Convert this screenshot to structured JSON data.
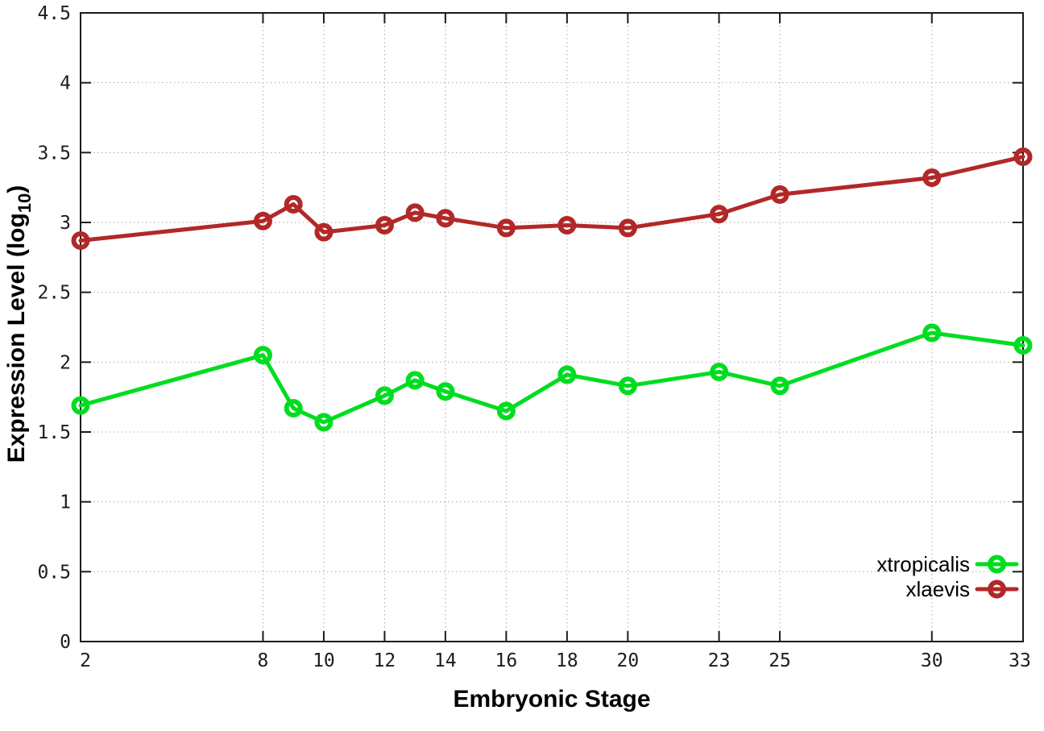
{
  "chart_data": {
    "type": "line",
    "title": "",
    "xlabel": "Embryonic Stage",
    "ylabel": "Expression Level (log10)",
    "ylabel_parts": {
      "pre": "Expression Level (log",
      "sub": "10",
      "post": ")"
    },
    "x": [
      2,
      8,
      9,
      10,
      12,
      13,
      14,
      16,
      18,
      20,
      23,
      25,
      30,
      33
    ],
    "series": [
      {
        "name": "xtropicalis",
        "color": "#00dd20",
        "values": [
          1.69,
          2.05,
          1.67,
          1.57,
          1.76,
          1.87,
          1.79,
          1.65,
          1.91,
          1.83,
          1.93,
          1.83,
          2.21,
          2.12
        ]
      },
      {
        "name": "xlaevis",
        "color": "#b22828",
        "values": [
          2.87,
          3.01,
          3.13,
          2.93,
          2.98,
          3.07,
          3.03,
          2.96,
          2.98,
          2.96,
          3.06,
          3.2,
          3.32,
          3.47
        ]
      }
    ],
    "xlim": [
      2,
      33
    ],
    "ylim": [
      0,
      4.5
    ],
    "x_tick_labels": [
      "2",
      "8",
      "10",
      "12",
      "14",
      "16",
      "18",
      "20",
      "23",
      "25",
      "30",
      "33"
    ],
    "x_tick_values": [
      2,
      8,
      10,
      12,
      14,
      16,
      18,
      20,
      23,
      25,
      30,
      33
    ],
    "y_tick_labels": [
      "0",
      "0.5",
      "1",
      "1.5",
      "2",
      "2.5",
      "3",
      "3.5",
      "4",
      "4.5"
    ],
    "y_tick_values": [
      0,
      0.5,
      1,
      1.5,
      2,
      2.5,
      3,
      3.5,
      4,
      4.5
    ],
    "grid": true,
    "legend_position": "bottom-right",
    "marker": "open-circle",
    "axis_color": "#1c1c1c",
    "grid_color": "#a9a9a9"
  }
}
